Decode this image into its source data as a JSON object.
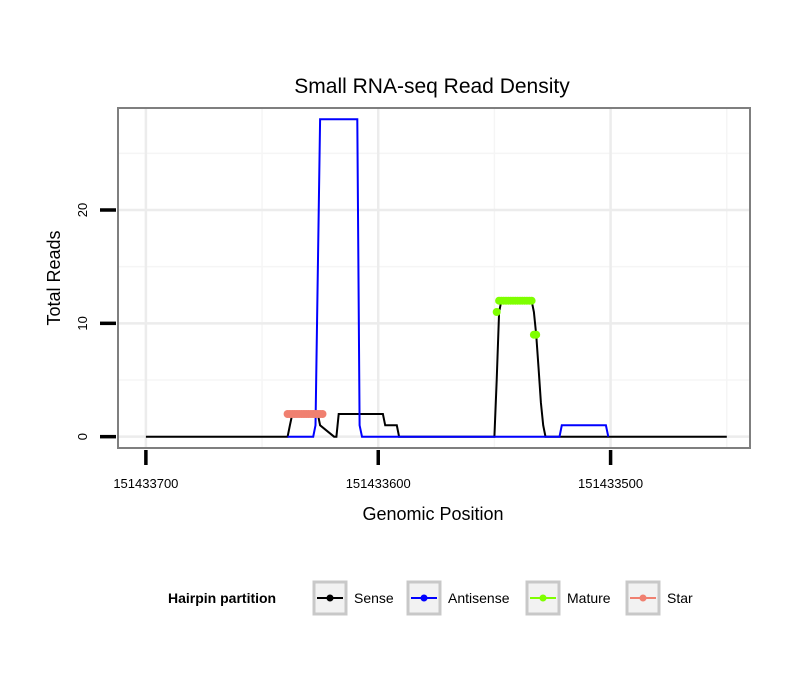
{
  "chart_data": {
    "type": "line",
    "title": "Small RNA-seq Read Density",
    "xlabel": "Genomic Position",
    "ylabel": "Total Reads",
    "x_reversed": true,
    "xlim": [
      151433712,
      151433440
    ],
    "ylim": [
      -1,
      29
    ],
    "x_ticks": [
      {
        "value": 151433700,
        "label": "151433700"
      },
      {
        "value": 151433600,
        "label": "151433600"
      },
      {
        "value": 151433500,
        "label": "151433500"
      }
    ],
    "y_ticks": [
      {
        "value": 0,
        "label": "0"
      },
      {
        "value": 10,
        "label": "10"
      },
      {
        "value": 20,
        "label": "20"
      }
    ],
    "grid": true,
    "legend": {
      "title": "Hairpin partition",
      "position": "bottom",
      "entries": [
        "Sense",
        "Antisense",
        "Mature",
        "Star"
      ]
    },
    "colors": {
      "Sense": "#000000",
      "Antisense": "#0000ff",
      "Mature": "#7fff00",
      "Star": "#f08070"
    },
    "series": [
      {
        "name": "Sense",
        "x": [
          151433700,
          151433639,
          151433638,
          151433637,
          151433636,
          151433635,
          151433626,
          151433625,
          151433619,
          151433618,
          151433617,
          151433616,
          151433615,
          151433598,
          151433597,
          151433592,
          151433591,
          151433590,
          151433587,
          151433586,
          151433585,
          151433550,
          151433549,
          151433548,
          151433547,
          151433534,
          151433533,
          151433532,
          151433531,
          151433530,
          151433529,
          151433528,
          151433527,
          151433526,
          151433450
        ],
        "y": [
          0,
          0,
          1,
          2,
          2,
          2,
          2,
          1,
          0,
          0,
          2,
          2,
          2,
          2,
          1,
          1,
          0,
          0,
          0,
          0,
          0,
          0,
          5,
          11,
          12,
          12,
          11,
          9,
          6,
          3,
          1,
          0,
          0,
          0,
          0
        ]
      },
      {
        "name": "Antisense",
        "x": [
          151433639,
          151433628,
          151433627,
          151433625,
          151433624,
          151433610,
          151433609,
          151433608,
          151433607,
          151433522,
          151433521,
          151433520,
          151433503,
          151433502,
          151433501
        ],
        "y": [
          0,
          0,
          1,
          28,
          28,
          28,
          28,
          1,
          0,
          0,
          1,
          1,
          1,
          1,
          0
        ]
      },
      {
        "name": "Mature",
        "x": [
          151433549,
          151433548,
          151433547,
          151433546,
          151433545,
          151433544,
          151433543,
          151433542,
          151433541,
          151433540,
          151433539,
          151433538,
          151433537,
          151433536,
          151433535,
          151433534,
          151433533,
          151433532
        ],
        "y": [
          11,
          12,
          12,
          12,
          12,
          12,
          12,
          12,
          12,
          12,
          12,
          12,
          12,
          12,
          12,
          12,
          9,
          9
        ]
      },
      {
        "name": "Star",
        "x": [
          151433639,
          151433638,
          151433637,
          151433636,
          151433635,
          151433634,
          151433633,
          151433632,
          151433631,
          151433630,
          151433629,
          151433628,
          151433627,
          151433626,
          151433625,
          151433624
        ],
        "y": [
          2,
          2,
          2,
          2,
          2,
          2,
          2,
          2,
          2,
          2,
          2,
          2,
          2,
          2,
          2,
          2
        ]
      }
    ]
  }
}
